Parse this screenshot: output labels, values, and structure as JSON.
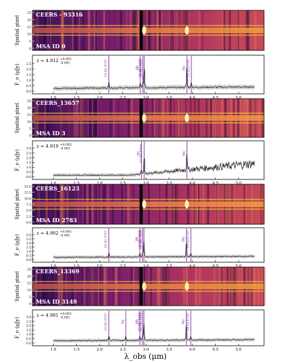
{
  "figure": {
    "xlabel": "λ_obs (μm)",
    "x_ticks": [
      "1.0",
      "1.5",
      "2.0",
      "2.5",
      "3.0",
      "3.5",
      "4.0",
      "4.5",
      "5.0"
    ]
  },
  "panels": [
    {
      "id_text": "CEERS - 93316",
      "msa_text": "MSA ID 0",
      "spatial_label": "Spatial pixel",
      "flux_label": "F_ν (μJy)",
      "redshift": {
        "z": "z = 4.912",
        "plus": "+0.001",
        "minus": "-0.001"
      },
      "spatial_ticks": [
        "0",
        "5",
        "10",
        "15",
        "20",
        "25"
      ],
      "flux_ticks": [
        "0.0",
        "0.5",
        "1.0",
        "1.5",
        "2.0",
        "2.5"
      ],
      "lines": [
        {
          "label": "[O II] 3727",
          "wl": 2.2
        },
        {
          "label": "Hβ",
          "wl": 2.878
        },
        {
          "label": "[O III] 4959",
          "wl": 2.935
        },
        {
          "label": "[O III] 5008",
          "wl": 2.964
        },
        {
          "label": "Hα",
          "wl": 3.884
        },
        {
          "label": "[S II] 6725",
          "wl": 3.981
        }
      ]
    },
    {
      "id_text": "CEERS_13657",
      "msa_text": "MSA ID 3",
      "spatial_label": "Spatial pixel",
      "flux_label": "F_ν (μJy)",
      "redshift": {
        "z": "z = 4.910",
        "plus": "+0.003",
        "minus": "-0.003"
      },
      "spatial_ticks": [
        "0",
        "5",
        "10",
        "15",
        "20",
        "25"
      ],
      "flux_ticks": [
        "0.0",
        "0.5",
        "1.0",
        "1.5",
        "2.0",
        "2.5",
        "3.0"
      ],
      "lines": [
        {
          "label": "Hγ",
          "wl": 2.9
        },
        {
          "label": "[O III] 5008",
          "wl": 2.962
        },
        {
          "label": "Hα",
          "wl": 3.884
        }
      ]
    },
    {
      "id_text": "CEERS_16123",
      "msa_text": "MSA ID 2783",
      "spatial_label": "Spatial pixel",
      "flux_label": "F_ν (μJy)",
      "redshift": {
        "z": "z = 4.902",
        "plus": "+0.001",
        "minus": "-0.001"
      },
      "spatial_ticks": [
        "0.0",
        "2.5",
        "5.0",
        "7.5",
        "10.0",
        "12.5",
        "15.0"
      ],
      "flux_ticks": [
        "0.0",
        "0.5",
        "1.0",
        "1.5",
        "2.0",
        "2.5",
        "3.0"
      ],
      "lines": [
        {
          "label": "[O II] 3727",
          "wl": 2.2
        },
        {
          "label": "Hβ",
          "wl": 2.87
        },
        {
          "label": "[O III] 4959",
          "wl": 2.927
        },
        {
          "label": "[O III] 5008",
          "wl": 2.956
        },
        {
          "label": "Hα",
          "wl": 3.874
        },
        {
          "label": "[S II] 6725",
          "wl": 3.969
        }
      ]
    },
    {
      "id_text": "CEERS_13369",
      "msa_text": "MSA ID 3149",
      "spatial_label": "Spatial pixel",
      "flux_label": "F_ν (μJy)",
      "redshift": {
        "z": "z = 4.901",
        "plus": "+0.001",
        "minus": "-0.001"
      },
      "spatial_ticks": [
        "0",
        "5",
        "10",
        "15",
        "20",
        "25"
      ],
      "flux_ticks": [
        "0.0",
        "0.5",
        "1.0",
        "1.5",
        "2.0",
        "2.5",
        "3.0"
      ],
      "lines": [
        {
          "label": "[O II] 3727",
          "wl": 2.2
        },
        {
          "label": "Hγ",
          "wl": 2.565
        },
        {
          "label": "Hβ",
          "wl": 2.868
        },
        {
          "label": "[O III] 4959",
          "wl": 2.925
        },
        {
          "label": "[O III] 5008",
          "wl": 2.955
        },
        {
          "label": "Hα",
          "wl": 3.873
        },
        {
          "label": "[S II] 6725",
          "wl": 3.968
        }
      ]
    }
  ],
  "colors": {
    "inferno_dark": "#2a0a4a",
    "inferno_mid": "#a0306a",
    "inferno_bright": "#f5d030",
    "aperture": "#f0e030",
    "line_marker": "#7a2a9a",
    "spectrum": "#000000",
    "error_band": "#b0b0b0"
  }
}
